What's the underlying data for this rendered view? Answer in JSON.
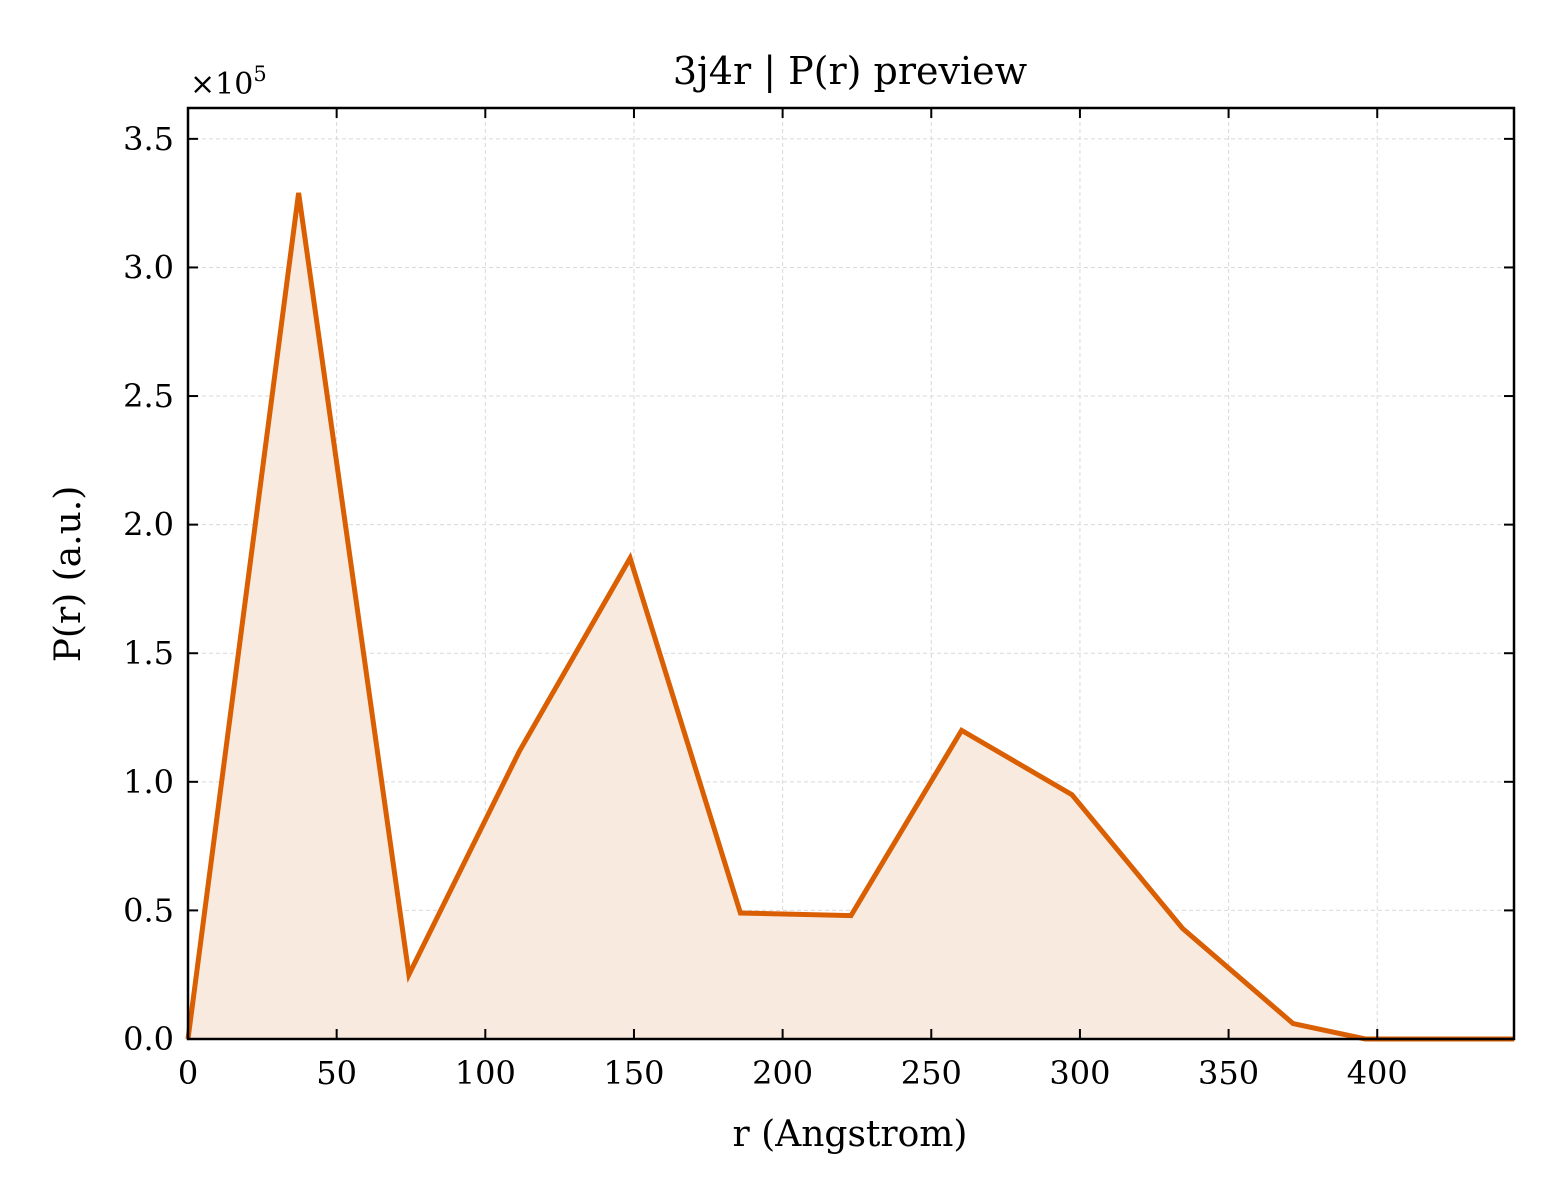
{
  "chart_data": {
    "type": "area",
    "title": "3j4r | P(r) preview",
    "xlabel": "r (Angstrom)",
    "ylabel": "P(r) (a.u.)",
    "y_scale_label": "×10",
    "y_scale_exponent": "5",
    "xlim": [
      0,
      446
    ],
    "ylim": [
      0,
      3.62
    ],
    "xticks": [
      0,
      50,
      100,
      150,
      200,
      250,
      300,
      350,
      400
    ],
    "xtick_labels": [
      "0",
      "50",
      "100",
      "150",
      "200",
      "250",
      "300",
      "350",
      "400"
    ],
    "yticks": [
      0,
      0.5,
      1.0,
      1.5,
      2.0,
      2.5,
      3.0,
      3.5
    ],
    "ytick_labels": [
      "0.0",
      "0.5",
      "1.0",
      "1.5",
      "2.0",
      "2.5",
      "3.0",
      "3.5"
    ],
    "grid": true,
    "colors": {
      "line": "#d95f02",
      "fill": "#f9eadf",
      "grid": "#d9d9d9"
    },
    "series": [
      {
        "x": [
          0,
          37.2,
          74.3,
          111.5,
          148.7,
          185.8,
          223,
          260.2,
          297.3,
          334.5,
          371.7,
          396,
          446
        ],
        "y": [
          0,
          3.29,
          0.25,
          1.12,
          1.87,
          0.49,
          0.48,
          1.2,
          0.95,
          0.43,
          0.06,
          0,
          0
        ]
      }
    ]
  }
}
